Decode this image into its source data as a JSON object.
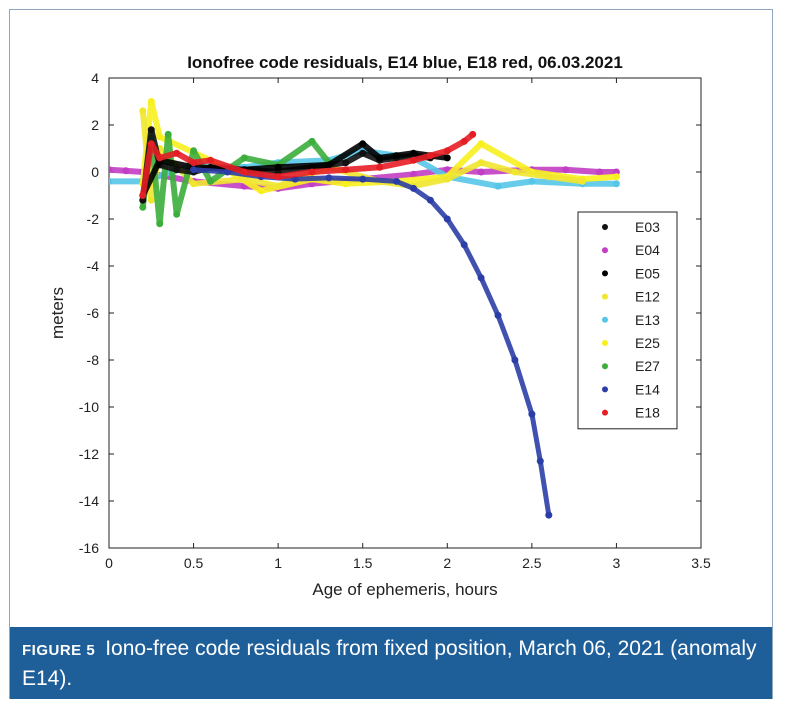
{
  "caption": {
    "label": "FIGURE 5",
    "text": "Iono-free code residuals from fixed position, March 06, 2021 (anomaly E14)."
  },
  "chart_data": {
    "type": "scatter",
    "title": "Ionofree code residuals, E14 blue, E18 red, 06.03.2021",
    "xlabel": "Age of ephemeris, hours",
    "ylabel": "meters",
    "xlim": [
      0,
      3.5
    ],
    "ylim": [
      -16,
      4
    ],
    "xticks": [
      0,
      0.5,
      1,
      1.5,
      2,
      2.5,
      3,
      3.5
    ],
    "xtick_labels": [
      "0",
      "0.5",
      "1",
      "1.5",
      "2",
      "2.5",
      "3",
      "3.5"
    ],
    "yticks": [
      4,
      2,
      0,
      -2,
      -4,
      -6,
      -8,
      -10,
      -12,
      -14,
      -16
    ],
    "ytick_labels": [
      "4",
      "2",
      "0",
      "-2",
      "-4",
      "-6",
      "-8",
      "-10",
      "-12",
      "-14",
      "-16"
    ],
    "grid": false,
    "legend_position": "right",
    "series": [
      {
        "name": "E03",
        "color": "#111111",
        "x": [
          0.2,
          0.25,
          0.3,
          0.4,
          0.5,
          0.6,
          0.8,
          1.0,
          1.2,
          1.4,
          1.5,
          1.6,
          1.7,
          1.8,
          1.9
        ],
        "y": [
          -1.2,
          1.8,
          0.3,
          0.1,
          0.0,
          0.2,
          0.1,
          0.0,
          0.2,
          0.4,
          0.8,
          0.5,
          0.6,
          0.7,
          0.6
        ]
      },
      {
        "name": "E04",
        "color": "#c23ec4",
        "x": [
          0.0,
          0.1,
          0.2,
          0.5,
          0.8,
          1.0,
          1.2,
          1.5,
          1.8,
          2.0,
          2.2,
          2.5,
          2.7,
          2.9,
          3.0
        ],
        "y": [
          0.1,
          0.05,
          0.0,
          -0.4,
          -0.6,
          -0.7,
          -0.5,
          -0.3,
          -0.1,
          0.1,
          0.0,
          0.1,
          0.1,
          0.0,
          0.0
        ]
      },
      {
        "name": "E05",
        "color": "#000000",
        "x": [
          0.2,
          0.3,
          0.5,
          0.8,
          1.0,
          1.3,
          1.5,
          1.6,
          1.7,
          1.8,
          1.9,
          2.0
        ],
        "y": [
          -1.0,
          0.5,
          0.2,
          0.1,
          0.2,
          0.3,
          1.2,
          0.6,
          0.7,
          0.8,
          0.7,
          0.6
        ]
      },
      {
        "name": "E12",
        "color": "#f0e630",
        "x": [
          0.2,
          0.25,
          0.3,
          0.5,
          0.8,
          1.0,
          1.3,
          1.6,
          1.8,
          2.0,
          2.2,
          2.4,
          2.6,
          2.8
        ],
        "y": [
          2.6,
          -1.2,
          1.0,
          -0.5,
          -0.3,
          -0.6,
          0.2,
          -0.4,
          -0.6,
          -0.3,
          0.4,
          0.0,
          -0.2,
          -0.4
        ]
      },
      {
        "name": "E13",
        "color": "#55c6e8",
        "x": [
          0.0,
          0.2,
          0.5,
          0.8,
          1.0,
          1.3,
          1.5,
          1.8,
          2.0,
          2.3,
          2.5,
          2.8,
          3.0
        ],
        "y": [
          -0.4,
          -0.4,
          0.3,
          0.2,
          0.4,
          0.5,
          0.9,
          0.6,
          -0.2,
          -0.6,
          -0.4,
          -0.5,
          -0.5
        ]
      },
      {
        "name": "E25",
        "color": "#f7f01e",
        "x": [
          0.2,
          0.25,
          0.3,
          0.6,
          0.9,
          1.2,
          1.4,
          1.7,
          2.0,
          2.2,
          2.5,
          2.8,
          3.0
        ],
        "y": [
          -0.5,
          3.0,
          1.5,
          0.5,
          -0.8,
          -0.3,
          -0.5,
          -0.4,
          -0.2,
          1.2,
          0.0,
          -0.3,
          -0.2
        ]
      },
      {
        "name": "E27",
        "color": "#3cae3c",
        "x": [
          0.2,
          0.25,
          0.3,
          0.35,
          0.4,
          0.5,
          0.6,
          0.8,
          1.0,
          1.2,
          1.3
        ],
        "y": [
          -1.5,
          1.5,
          -2.2,
          1.6,
          -1.8,
          0.9,
          -0.4,
          0.6,
          0.3,
          1.3,
          0.4
        ]
      },
      {
        "name": "E14",
        "color": "#2b3ea6",
        "x": [
          0.5,
          0.7,
          0.9,
          1.1,
          1.3,
          1.5,
          1.7,
          1.8,
          1.9,
          2.0,
          2.1,
          2.2,
          2.3,
          2.4,
          2.5,
          2.55,
          2.6
        ],
        "y": [
          0.1,
          0.0,
          -0.2,
          -0.3,
          -0.25,
          -0.3,
          -0.4,
          -0.7,
          -1.2,
          -2.0,
          -3.1,
          -4.5,
          -6.1,
          -8.0,
          -10.3,
          -12.3,
          -14.6
        ]
      },
      {
        "name": "E18",
        "color": "#e51e25",
        "x": [
          0.2,
          0.25,
          0.3,
          0.4,
          0.5,
          0.6,
          0.8,
          1.0,
          1.2,
          1.4,
          1.6,
          1.8,
          1.9,
          2.0,
          2.1,
          2.15
        ],
        "y": [
          -1.0,
          1.2,
          0.6,
          0.8,
          0.4,
          0.5,
          0.0,
          -0.2,
          0.0,
          0.1,
          0.2,
          0.5,
          0.7,
          0.9,
          1.3,
          1.6
        ]
      }
    ]
  }
}
